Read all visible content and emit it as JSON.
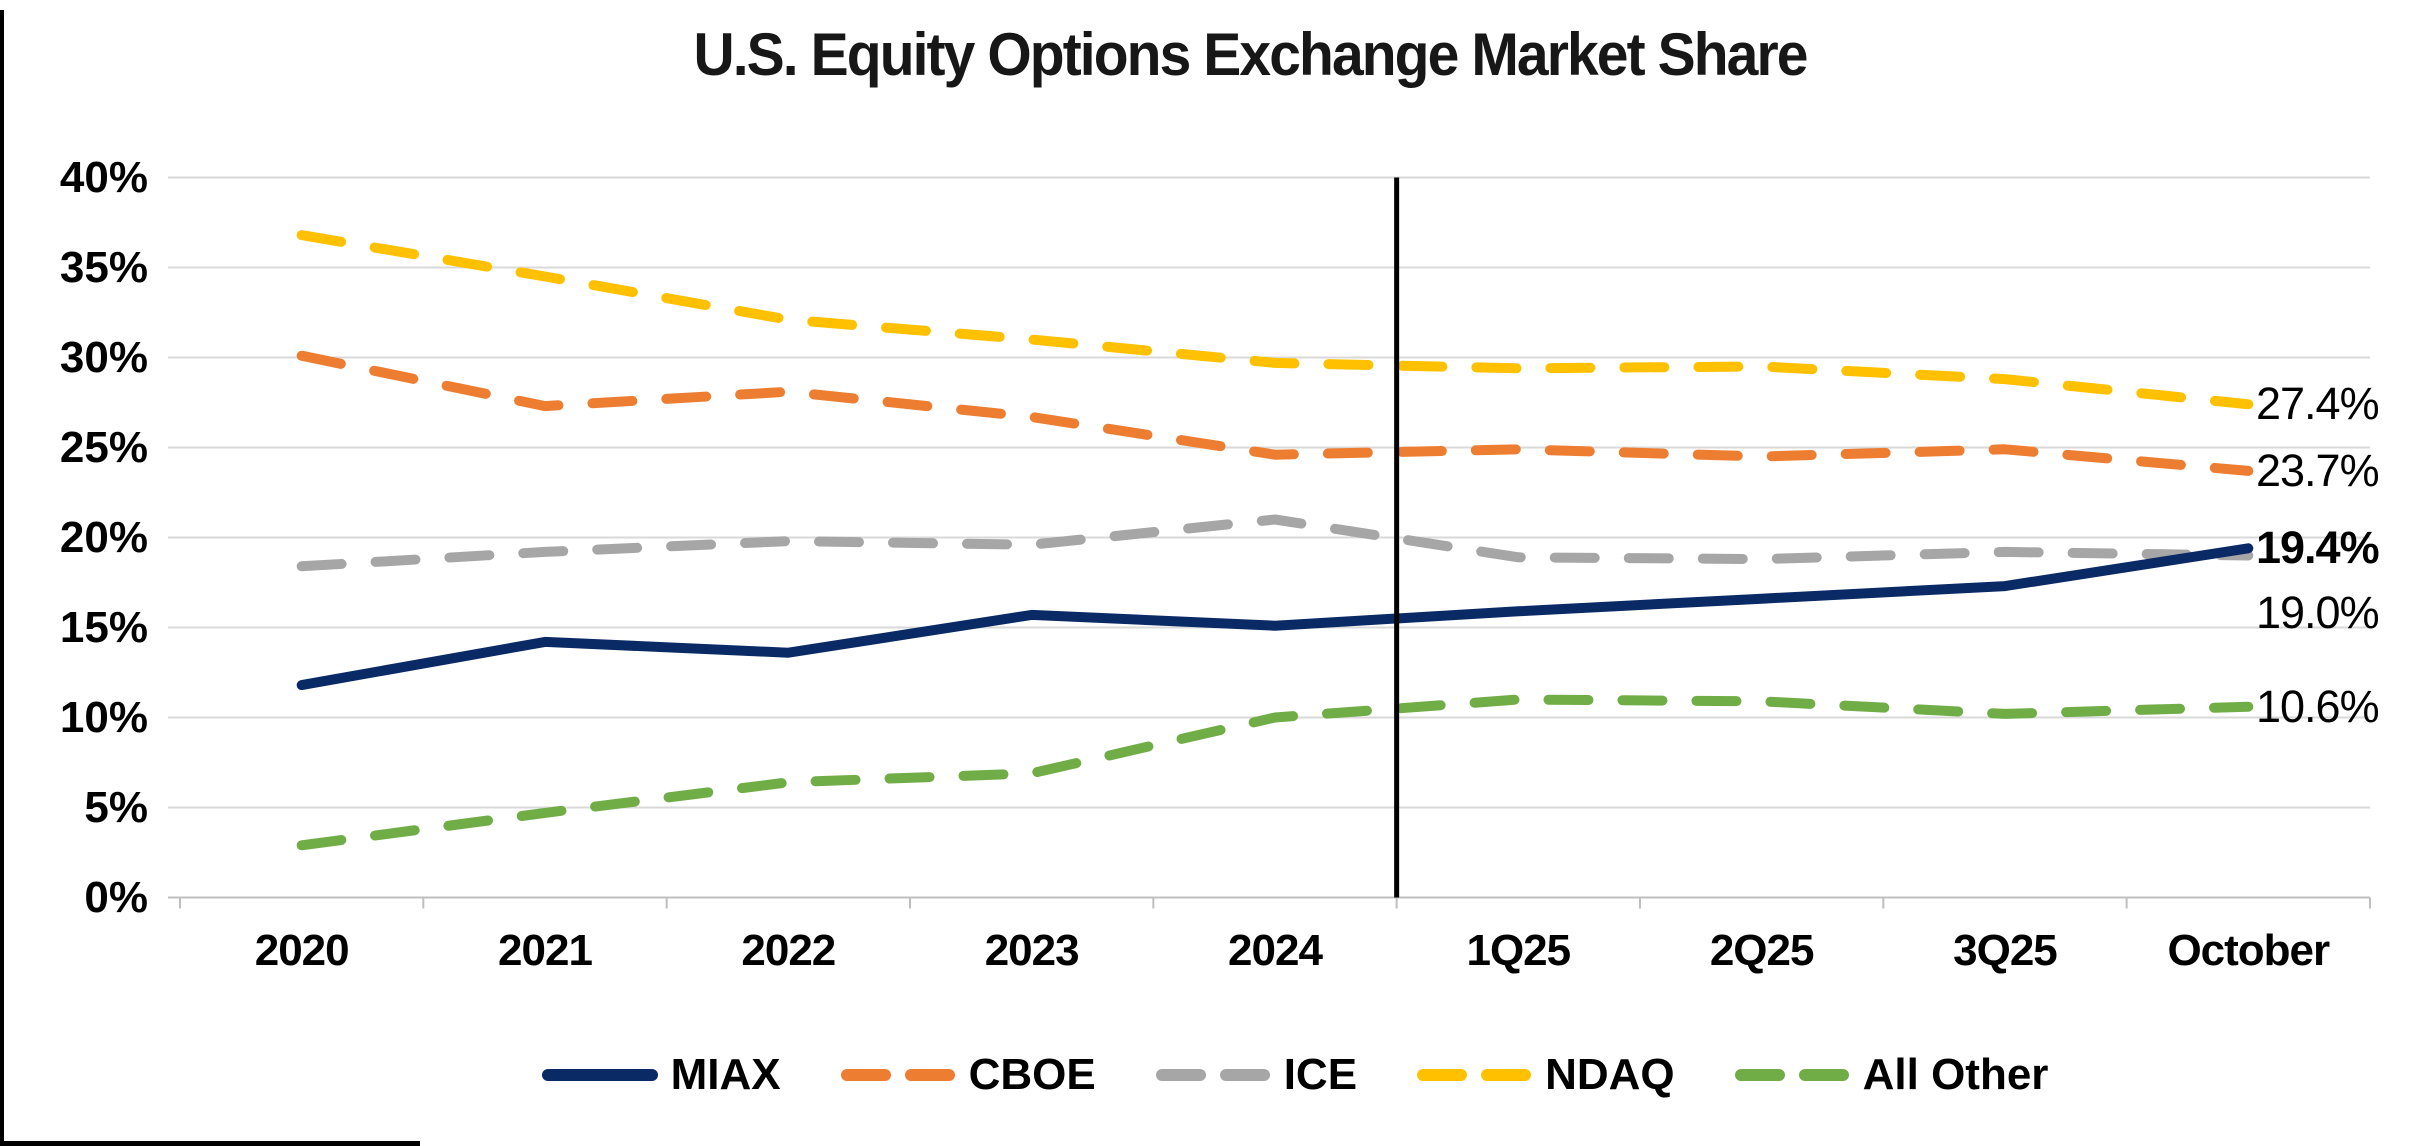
{
  "title": "U.S. Equity Options Exchange Market Share",
  "chart_data": {
    "type": "line",
    "title": "U.S. Equity Options Exchange Market Share",
    "categories": [
      "2020",
      "2021",
      "2022",
      "2023",
      "2024",
      "1Q25",
      "2Q25",
      "3Q25",
      "October"
    ],
    "series": [
      {
        "name": "MIAX",
        "color": "#0A2A66",
        "style": "solid",
        "values": [
          11.8,
          14.2,
          13.6,
          15.7,
          15.1,
          15.9,
          16.6,
          17.3,
          19.4
        ]
      },
      {
        "name": "CBOE",
        "color": "#ED7D31",
        "style": "dashed",
        "values": [
          30.1,
          27.3,
          28.1,
          26.7,
          24.6,
          24.9,
          24.5,
          24.9,
          23.7
        ]
      },
      {
        "name": "ICE",
        "color": "#A6A6A6",
        "style": "dashed",
        "values": [
          18.4,
          19.2,
          19.8,
          19.6,
          21.0,
          18.9,
          18.8,
          19.2,
          19.0
        ]
      },
      {
        "name": "NDAQ",
        "color": "#FFC000",
        "style": "dashed",
        "values": [
          36.8,
          34.5,
          32.1,
          31.0,
          29.7,
          29.4,
          29.5,
          28.8,
          27.4
        ]
      },
      {
        "name": "All Other",
        "color": "#70AD47",
        "style": "dashed",
        "values": [
          2.9,
          4.7,
          6.4,
          6.9,
          10.0,
          11.0,
          10.9,
          10.2,
          10.6
        ]
      }
    ],
    "y_axis": {
      "min": 0,
      "max": 40,
      "step": 5,
      "tick_labels": [
        "0%",
        "5%",
        "10%",
        "15%",
        "20%",
        "25%",
        "30%",
        "35%",
        "40%"
      ]
    },
    "grid": true,
    "legend_position": "bottom",
    "divider_after_category": "2024",
    "end_labels": [
      {
        "text": "27.4%",
        "series": "NDAQ",
        "bold": false
      },
      {
        "text": "23.7%",
        "series": "CBOE",
        "bold": false
      },
      {
        "text": "19.4%",
        "series": "MIAX",
        "bold": true
      },
      {
        "text": "19.0%",
        "series": "ICE",
        "bold": false
      },
      {
        "text": "10.6%",
        "series": "All Other",
        "bold": false
      }
    ]
  },
  "colors": {
    "gridline": "#D9D9D9",
    "axis": "#BFBFBF",
    "divider": "#000000",
    "page_border": "#000000"
  }
}
